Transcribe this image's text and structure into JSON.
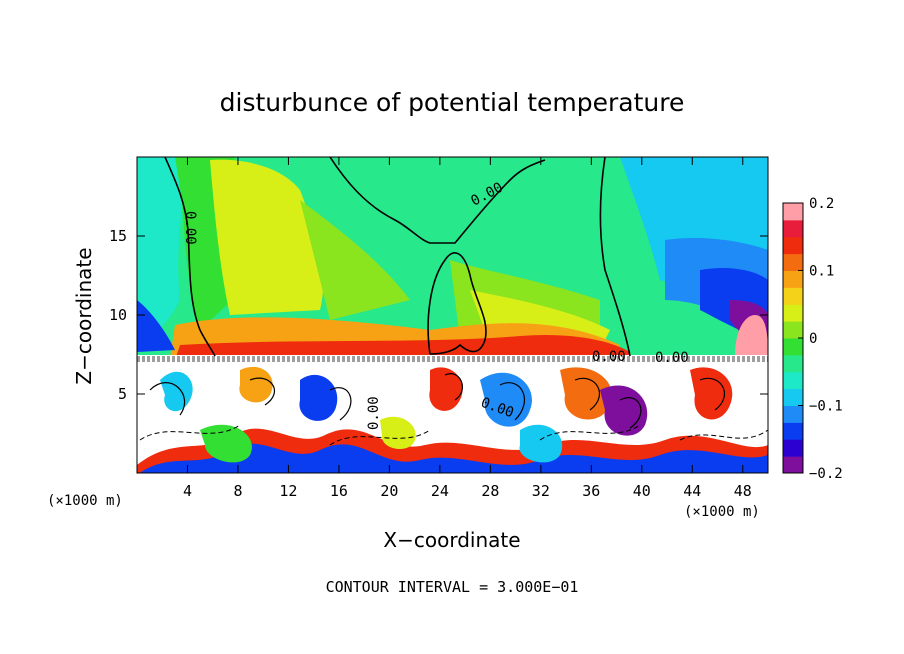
{
  "chart_data": {
    "type": "heatmap",
    "title": "disturbunce of potential temperature",
    "xlabel": "X−coordinate",
    "ylabel": "Z−coordinate",
    "x_unit_left": "(×1000 m)",
    "x_unit_right": "(×1000 m)",
    "xlim": [
      0,
      50
    ],
    "ylim": [
      0,
      20
    ],
    "x_ticks": [
      4,
      8,
      12,
      16,
      20,
      24,
      28,
      32,
      36,
      40,
      44,
      48
    ],
    "y_ticks": [
      5,
      10,
      15
    ],
    "colorbar": {
      "range": [
        -0.2,
        0.2
      ],
      "tick_values": [
        0.2,
        0.1,
        0,
        -0.1,
        -0.2
      ],
      "tick_labels": [
        "0.2",
        "0.1",
        "0",
        "−0.1",
        "−0.2"
      ],
      "colors": [
        "#7d0f9c",
        "#2d00d2",
        "#0a3cf0",
        "#1f8bf7",
        "#15c9f0",
        "#1de8c8",
        "#27e88a",
        "#33df33",
        "#8ae41e",
        "#d7ef17",
        "#f5d21a",
        "#f7a214",
        "#f46c10",
        "#ef2d0e",
        "#e81c3b",
        "#ff9ea6"
      ]
    },
    "contour_labels": [
      "0.00",
      "0.00",
      "0.00",
      "0.00",
      "0.00",
      "0.00"
    ],
    "footer": "CONTOUR INTERVAL = 3.000E−01"
  }
}
